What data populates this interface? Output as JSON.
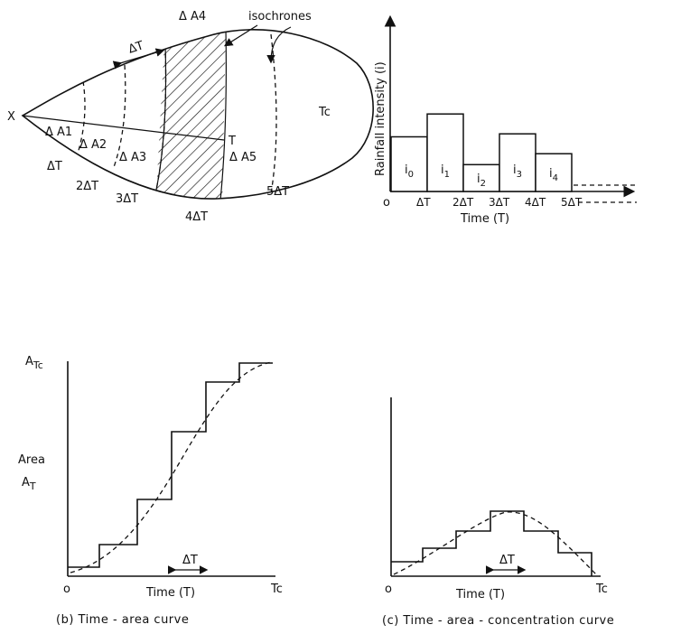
{
  "catchment": {
    "outlet": "X",
    "tc": "Tc",
    "t_label": "T",
    "isochrones_label": "isochrones",
    "delta_t_arrow": "ΔT",
    "areas": [
      "Δ A1",
      "Δ A2",
      "Δ A3",
      "Δ A4",
      "Δ A5"
    ],
    "times": [
      "ΔT",
      "2ΔT",
      "3ΔT",
      "4ΔT",
      "5ΔT"
    ]
  },
  "hyetograph": {
    "ylabel": "Rainfall intensity (i)",
    "xlabel": "Time (T)",
    "origin": "o",
    "ticks": [
      "ΔT",
      "2ΔT",
      "3ΔT",
      "4ΔT",
      "5ΔT"
    ],
    "bars": [
      {
        "label": "i0",
        "intensity": 0.55
      },
      {
        "label": "i1",
        "intensity": 0.78
      },
      {
        "label": "i2",
        "intensity": 0.27
      },
      {
        "label": "i3",
        "intensity": 0.58
      },
      {
        "label": "i4",
        "intensity": 0.38
      }
    ]
  },
  "time_area": {
    "ylabel_top": "A",
    "ylabel_top_sub": "Tc",
    "ylabel_area": "Area",
    "ylabel_at": "A",
    "ylabel_at_sub": "T",
    "xlabel": "Time (T)",
    "origin": "o",
    "tc": "Tc",
    "delta_t": "ΔT",
    "caption": "(b) Time - area curve"
  },
  "time_area_conc": {
    "xlabel": "Time (T)",
    "origin": "o",
    "tc": "Tc",
    "delta_t": "ΔT",
    "caption": "(c) Time - area - concentration curve"
  }
}
